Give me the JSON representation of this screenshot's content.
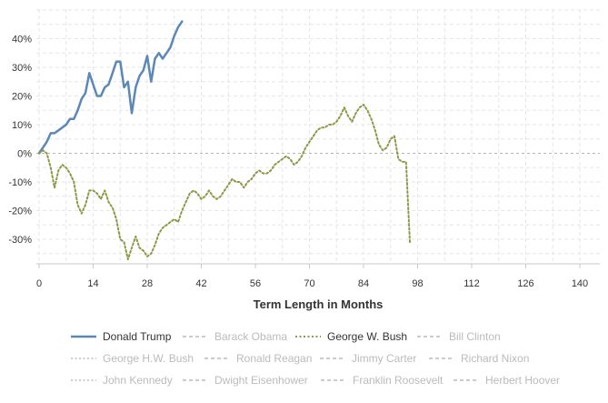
{
  "chart_data": {
    "type": "line",
    "title": "",
    "xlabel": "Term Length in Months",
    "ylabel": "",
    "xlim": [
      0,
      144
    ],
    "ylim": [
      -41,
      51
    ],
    "x_ticks": [
      0,
      14,
      28,
      42,
      56,
      70,
      84,
      98,
      112,
      126,
      140
    ],
    "y_ticks": [
      -30,
      -20,
      -10,
      0,
      10,
      20,
      30,
      40
    ],
    "y_tick_suffix": "%",
    "grid": true,
    "zero_line_style": "dashed",
    "legend_position": "bottom",
    "series": [
      {
        "name": "Donald Trump",
        "color": "#5b87b9",
        "style": "solid",
        "active": true,
        "x": [
          0,
          1,
          2,
          3,
          4,
          5,
          6,
          7,
          8,
          9,
          10,
          11,
          12,
          13,
          14,
          15,
          16,
          17,
          18,
          19,
          20,
          21,
          22,
          23,
          24,
          25,
          26,
          27,
          28,
          29,
          30,
          31,
          32,
          33,
          34,
          35,
          36,
          37
        ],
        "y": [
          0,
          2,
          4,
          7,
          7,
          8,
          9,
          10,
          12,
          12,
          15,
          19,
          21,
          28,
          24,
          20,
          20,
          23,
          24,
          28,
          32,
          32,
          23,
          25,
          14,
          23,
          27,
          29,
          34,
          25,
          33,
          35,
          33,
          35,
          37,
          41,
          44,
          46
        ]
      },
      {
        "name": "Barack Obama",
        "color": "#cccccc",
        "style": "dashed",
        "active": false,
        "x": [],
        "y": []
      },
      {
        "name": "George W. Bush",
        "color": "#8b9a46",
        "style": "dotted",
        "active": true,
        "x": [
          0,
          1,
          2,
          3,
          4,
          5,
          6,
          7,
          8,
          9,
          10,
          11,
          12,
          13,
          14,
          15,
          16,
          17,
          18,
          19,
          20,
          21,
          22,
          23,
          24,
          25,
          26,
          27,
          28,
          29,
          30,
          31,
          32,
          33,
          34,
          35,
          36,
          37,
          38,
          39,
          40,
          41,
          42,
          43,
          44,
          45,
          46,
          47,
          48,
          49,
          50,
          51,
          52,
          53,
          54,
          55,
          56,
          57,
          58,
          59,
          60,
          61,
          62,
          63,
          64,
          65,
          66,
          67,
          68,
          69,
          70,
          71,
          72,
          73,
          74,
          75,
          76,
          77,
          78,
          79,
          80,
          81,
          82,
          83,
          84,
          85,
          86,
          87,
          88,
          89,
          90,
          91,
          92,
          93,
          94,
          95,
          96
        ],
        "y": [
          0,
          1,
          0,
          -5,
          -12,
          -6,
          -4,
          -5,
          -7,
          -10,
          -18,
          -21,
          -18,
          -13,
          -13,
          -14,
          -16,
          -13,
          -17,
          -19,
          -23,
          -30,
          -31,
          -37,
          -33,
          -29,
          -33,
          -34,
          -36,
          -35,
          -32,
          -28,
          -26,
          -25,
          -24,
          -23,
          -24,
          -20,
          -17,
          -14,
          -13,
          -14,
          -16,
          -15,
          -13,
          -15,
          -16,
          -15,
          -13,
          -11,
          -9,
          -10,
          -10,
          -12,
          -10,
          -9,
          -7,
          -6,
          -7,
          -7,
          -6,
          -4,
          -3,
          -2,
          -1,
          -2,
          -4,
          -3,
          -1,
          2,
          4,
          6,
          8,
          9,
          9,
          10,
          10,
          11,
          13,
          16,
          13,
          11,
          14,
          16,
          17,
          15,
          12,
          8,
          3,
          1,
          2,
          5,
          6,
          -2,
          -3,
          -3,
          -31
        ]
      },
      {
        "name": "Bill Clinton",
        "color": "#cccccc",
        "style": "dashed",
        "active": false,
        "x": [],
        "y": []
      },
      {
        "name": "George H.W. Bush",
        "color": "#cccccc",
        "style": "dotted",
        "active": false,
        "x": [],
        "y": []
      },
      {
        "name": "Ronald Reagan",
        "color": "#cccccc",
        "style": "dashed",
        "active": false,
        "x": [],
        "y": []
      },
      {
        "name": "Jimmy Carter",
        "color": "#cccccc",
        "style": "dashed",
        "active": false,
        "x": [],
        "y": []
      },
      {
        "name": "Richard Nixon",
        "color": "#cccccc",
        "style": "dashed",
        "active": false,
        "x": [],
        "y": []
      },
      {
        "name": "John Kennedy",
        "color": "#cccccc",
        "style": "dotted",
        "active": false,
        "x": [],
        "y": []
      },
      {
        "name": "Dwight Eisenhower",
        "color": "#cccccc",
        "style": "dashed",
        "active": false,
        "x": [],
        "y": []
      },
      {
        "name": "Franklin Roosevelt",
        "color": "#cccccc",
        "style": "dashed",
        "active": false,
        "x": [],
        "y": []
      },
      {
        "name": "Herbert Hoover",
        "color": "#cccccc",
        "style": "dashed",
        "active": false,
        "x": [],
        "y": []
      }
    ]
  }
}
